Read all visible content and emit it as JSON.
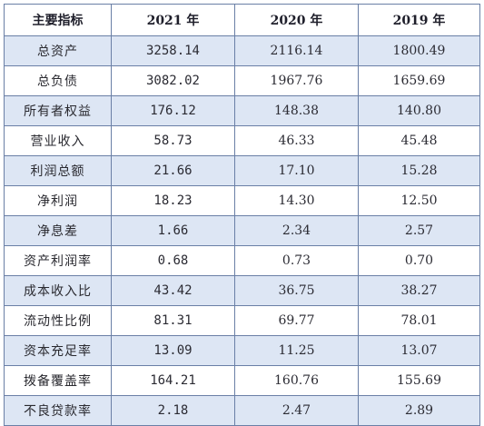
{
  "table": {
    "headers": [
      "主要指标",
      "2021 年",
      "2020 年",
      "2019 年"
    ],
    "rows": [
      {
        "label": "总资产",
        "values": [
          "3258.14",
          "2116.14",
          "1800.49"
        ]
      },
      {
        "label": "总负债",
        "values": [
          "3082.02",
          "1967.76",
          "1659.69"
        ]
      },
      {
        "label": "所有者权益",
        "values": [
          "176.12",
          "148.38",
          "140.80"
        ]
      },
      {
        "label": "营业收入",
        "values": [
          "58.73",
          "46.33",
          "45.48"
        ]
      },
      {
        "label": "利润总额",
        "values": [
          "21.66",
          "17.10",
          "15.28"
        ]
      },
      {
        "label": "净利润",
        "values": [
          "18.23",
          "14.30",
          "12.50"
        ]
      },
      {
        "label": "净息差",
        "values": [
          "1.66",
          "2.34",
          "2.57"
        ]
      },
      {
        "label": "资产利润率",
        "values": [
          "0.68",
          "0.73",
          "0.70"
        ]
      },
      {
        "label": "成本收入比",
        "values": [
          "43.42",
          "36.75",
          "38.27"
        ]
      },
      {
        "label": "流动性比例",
        "values": [
          "81.31",
          "69.77",
          "78.01"
        ]
      },
      {
        "label": "资本充足率",
        "values": [
          "13.09",
          "11.25",
          "13.07"
        ]
      },
      {
        "label": "拨备覆盖率",
        "values": [
          "164.21",
          "160.76",
          "155.69"
        ]
      },
      {
        "label": "不良贷款率",
        "values": [
          "2.18",
          "2.47",
          "2.89"
        ]
      }
    ]
  }
}
